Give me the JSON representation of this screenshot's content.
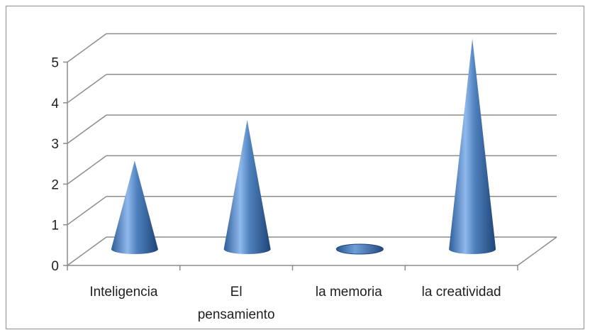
{
  "chart_data": {
    "type": "bar",
    "variant": "3d-cone",
    "categories": [
      {
        "lines": [
          "Inteligencia"
        ]
      },
      {
        "lines": [
          "El",
          "pensamiento"
        ]
      },
      {
        "lines": [
          "la memoria"
        ]
      },
      {
        "lines": [
          "la creatividad"
        ]
      }
    ],
    "values": [
      2,
      3,
      0,
      5
    ],
    "ylim": [
      0,
      5
    ],
    "yticks": [
      "0",
      "1",
      "2",
      "3",
      "4",
      "5"
    ],
    "grid": true,
    "legend": "none",
    "colors": {
      "cone_light": "#a9c8f0",
      "cone_mid": "#4f81bd",
      "cone_dark": "#244a7c",
      "grid": "#8c8c8c"
    }
  }
}
